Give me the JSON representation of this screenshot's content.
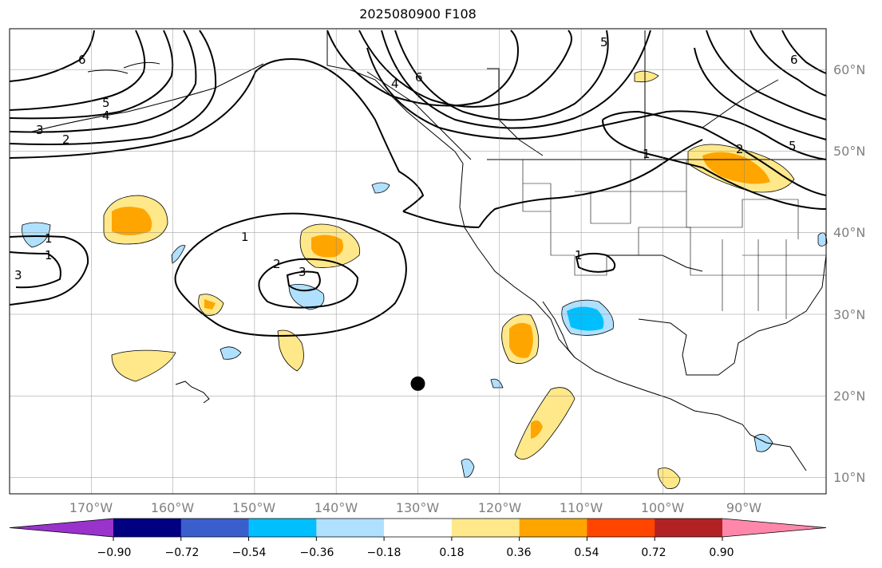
{
  "title": "2025080900 F108",
  "lat_labels": [
    "60°N",
    "50°N",
    "40°N",
    "30°N",
    "20°N",
    "10°N"
  ],
  "lon_labels": [
    "170°W",
    "160°W",
    "150°W",
    "140°W",
    "130°W",
    "120°W",
    "110°W",
    "100°W",
    "90°W"
  ],
  "colorbar": {
    "tick_labels": [
      "−0.90",
      "−0.72",
      "−0.54",
      "−0.36",
      "−0.18",
      "0.18",
      "0.36",
      "0.54",
      "0.72",
      "0.90"
    ],
    "colors": [
      "#9933cc",
      "#000080",
      "#3a5fcd",
      "#00bfff",
      "#b0e0ff",
      "#ffffff",
      "#ffe88a",
      "#ffa500",
      "#ff4500",
      "#b22222",
      "#ff88aa"
    ],
    "extend": "both"
  },
  "contour_labels": [
    "6",
    "5",
    "4",
    "3",
    "2",
    "1",
    "2",
    "3",
    "1",
    "6",
    "4",
    "5",
    "1",
    "2",
    "5",
    "6",
    "1",
    "1",
    "3"
  ],
  "map": {
    "projection": "PlateCarree",
    "lon_range": [
      -180,
      -80
    ],
    "lat_range": [
      8,
      65
    ],
    "grid": true,
    "marker": {
      "lon": -130,
      "lat": 21.5
    }
  }
}
